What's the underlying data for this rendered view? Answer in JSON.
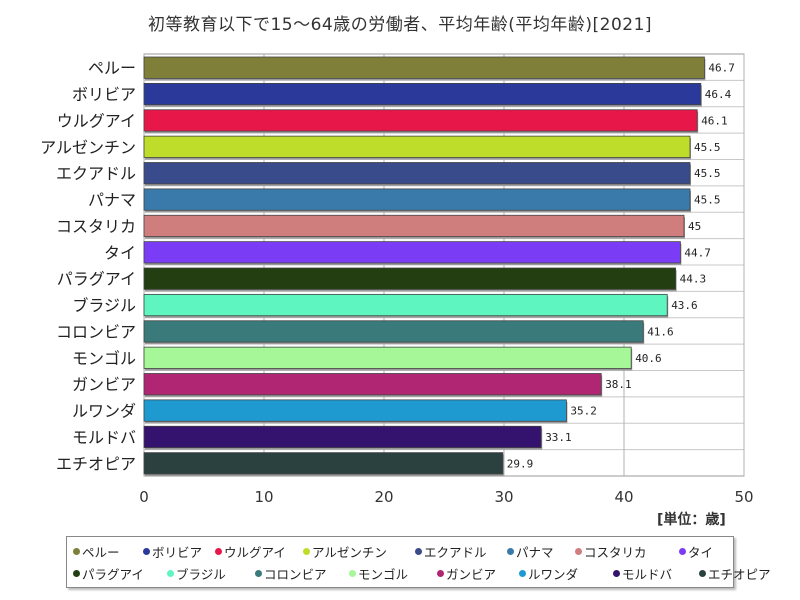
{
  "chart_data": {
    "type": "bar",
    "orientation": "horizontal",
    "title": "初等教育以下で15～64歳の労働者、平均年齢(平均年齢)[2021]",
    "unit_label": "[単位：歳]",
    "xlim": [
      0,
      50
    ],
    "x_ticks": [
      0,
      10,
      20,
      30,
      40,
      50
    ],
    "grid": true,
    "legend_position": "bottom",
    "categories": [
      "ペルー",
      "ボリビア",
      "ウルグアイ",
      "アルゼンチン",
      "エクアドル",
      "パナマ",
      "コスタリカ",
      "タイ",
      "パラグアイ",
      "ブラジル",
      "コロンビア",
      "モンゴル",
      "ガンビア",
      "ルワンダ",
      "モルドバ",
      "エチオピア"
    ],
    "values": [
      46.7,
      46.4,
      46.1,
      45.5,
      45.5,
      45.5,
      45,
      44.7,
      44.3,
      43.6,
      41.6,
      40.6,
      38.1,
      35.2,
      33.1,
      29.9
    ],
    "value_labels": [
      "46.7",
      "46.4",
      "46.1",
      "45.5",
      "45.5",
      "45.5",
      "45",
      "44.7",
      "44.3",
      "43.6",
      "41.6",
      "40.6",
      "38.1",
      "35.2",
      "33.1",
      "29.9"
    ],
    "colors": [
      "#7f7f3a",
      "#2b3a9a",
      "#e8174a",
      "#bedd2a",
      "#3a4b8c",
      "#3a7aaa",
      "#cf7d7d",
      "#7a3df5",
      "#233f12",
      "#5ef5c0",
      "#3a7a7a",
      "#a6f798",
      "#b02673",
      "#1e9ad0",
      "#34136f",
      "#2b4140"
    ]
  }
}
